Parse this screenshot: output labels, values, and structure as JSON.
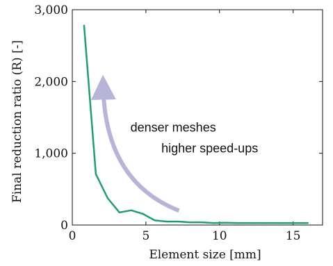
{
  "chart_data": {
    "type": "line",
    "title": "",
    "xlabel": "Element size [mm]",
    "ylabel": "Final reduction ratio (R) [-]",
    "xlim": [
      0,
      17
    ],
    "ylim": [
      0,
      3000
    ],
    "xticks": [
      0,
      5,
      10,
      15
    ],
    "yticks": [
      0,
      1000,
      2000,
      3000
    ],
    "xtick_labels": [
      "0",
      "5",
      "10",
      "15"
    ],
    "ytick_labels": [
      "0",
      "1,000",
      "2,000",
      "3,000"
    ],
    "grid": false,
    "series": [
      {
        "color": "#1f9e74",
        "x": [
          0.8,
          1.6,
          2.4,
          3.2,
          4.0,
          4.8,
          5.6,
          6.4,
          7.2,
          8.0,
          8.8,
          9.6,
          10.4,
          11.2,
          12.0,
          12.8,
          13.6,
          14.4,
          15.2,
          16.0
        ],
        "y": [
          2780,
          710,
          375,
          175,
          205,
          155,
          65,
          48,
          48,
          38,
          38,
          28,
          32,
          28,
          28,
          28,
          28,
          28,
          28,
          28
        ]
      }
    ],
    "annotations": [
      {
        "text": "denser meshes",
        "x": 3.95,
        "y": 1300
      },
      {
        "text": "higher speed-ups",
        "x": 6.05,
        "y": 1010
      }
    ],
    "arrow": {
      "color": "#b8b4d9",
      "from": [
        7.25,
        200
      ],
      "control": [
        2.25,
        600
      ],
      "to": [
        2.1,
        1920
      ]
    }
  }
}
